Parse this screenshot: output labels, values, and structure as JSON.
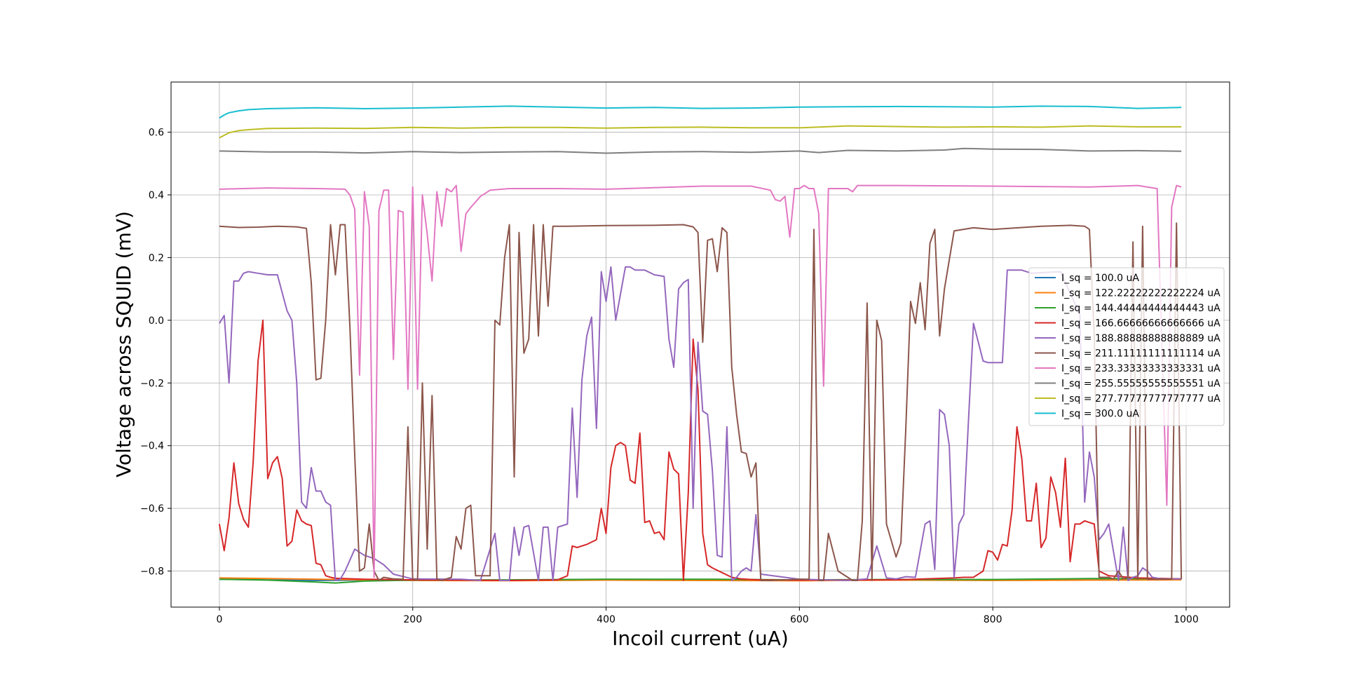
{
  "chart_data": {
    "type": "line",
    "xlabel": "Incoil current (uA)",
    "ylabel": "Voltage across SQUID (mV)",
    "xlim": [
      -50,
      1045
    ],
    "ylim": [
      -0.915,
      0.76
    ],
    "xticks": [
      0,
      200,
      400,
      600,
      800,
      1000
    ],
    "yticks": [
      -0.8,
      -0.6,
      -0.4,
      -0.2,
      0.0,
      0.2,
      0.4,
      0.6
    ],
    "xtick_labels": [
      "0",
      "200",
      "400",
      "600",
      "800",
      "1000"
    ],
    "ytick_labels": [
      "−0.8",
      "−0.6",
      "−0.4",
      "−0.2",
      "0.0",
      "0.2",
      "0.4",
      "0.6"
    ],
    "grid": true,
    "legend_position": "center-right",
    "series": [
      {
        "name": "I_sq = 100.0 uA",
        "color": "#1f77b4",
        "x": [
          0,
          100,
          200,
          300,
          400,
          500,
          600,
          700,
          800,
          900,
          995
        ],
        "y": [
          -0.826,
          -0.83,
          -0.828,
          -0.829,
          -0.827,
          -0.828,
          -0.829,
          -0.828,
          -0.829,
          -0.828,
          -0.827
        ]
      },
      {
        "name": "I_sq = 122.22222222222224 uA",
        "color": "#ff7f0e",
        "x": [
          0,
          100,
          200,
          300,
          400,
          500,
          600,
          700,
          800,
          900,
          995
        ],
        "y": [
          -0.822,
          -0.826,
          -0.83,
          -0.831,
          -0.829,
          -0.83,
          -0.831,
          -0.829,
          -0.83,
          -0.829,
          -0.828
        ]
      },
      {
        "name": "I_sq = 144.44444444444443 uA",
        "color": "#2ca02c",
        "x": [
          0,
          50,
          100,
          120,
          150,
          200,
          300,
          400,
          500,
          600,
          700,
          800,
          900,
          995
        ],
        "y": [
          -0.826,
          -0.829,
          -0.835,
          -0.838,
          -0.832,
          -0.829,
          -0.828,
          -0.826,
          -0.826,
          -0.828,
          -0.827,
          -0.827,
          -0.824,
          -0.825
        ]
      },
      {
        "name": "I_sq = 166.66666666666666 uA",
        "color": "#d62728",
        "x": [
          0,
          5,
          10,
          15,
          20,
          25,
          30,
          35,
          40,
          45,
          50,
          55,
          60,
          65,
          70,
          75,
          80,
          85,
          90,
          95,
          100,
          105,
          110,
          115,
          120,
          150,
          200,
          300,
          350,
          360,
          365,
          370,
          380,
          390,
          395,
          400,
          405,
          410,
          415,
          420,
          425,
          430,
          435,
          440,
          445,
          450,
          455,
          460,
          465,
          470,
          475,
          480,
          485,
          490,
          495,
          500,
          505,
          510,
          520,
          530,
          540,
          550,
          560,
          600,
          700,
          760,
          770,
          780,
          790,
          795,
          800,
          805,
          810,
          815,
          820,
          825,
          830,
          835,
          840,
          845,
          850,
          855,
          860,
          865,
          870,
          875,
          880,
          885,
          890,
          895,
          900,
          905,
          910,
          920,
          950,
          995
        ],
        "y": [
          -0.65,
          -0.735,
          -0.63,
          -0.455,
          -0.585,
          -0.635,
          -0.66,
          -0.45,
          -0.13,
          0.0,
          -0.505,
          -0.455,
          -0.435,
          -0.505,
          -0.72,
          -0.705,
          -0.605,
          -0.64,
          -0.65,
          -0.655,
          -0.775,
          -0.78,
          -0.815,
          -0.82,
          -0.823,
          -0.826,
          -0.828,
          -0.83,
          -0.828,
          -0.815,
          -0.72,
          -0.725,
          -0.715,
          -0.7,
          -0.6,
          -0.68,
          -0.47,
          -0.4,
          -0.39,
          -0.4,
          -0.51,
          -0.52,
          -0.36,
          -0.645,
          -0.64,
          -0.68,
          -0.675,
          -0.7,
          -0.42,
          -0.475,
          -0.49,
          -0.83,
          -0.55,
          -0.06,
          -0.22,
          -0.68,
          -0.78,
          -0.79,
          -0.805,
          -0.82,
          -0.825,
          -0.827,
          -0.828,
          -0.829,
          -0.828,
          -0.822,
          -0.82,
          -0.82,
          -0.8,
          -0.735,
          -0.74,
          -0.765,
          -0.715,
          -0.72,
          -0.605,
          -0.34,
          -0.44,
          -0.64,
          -0.64,
          -0.52,
          -0.725,
          -0.695,
          -0.5,
          -0.55,
          -0.66,
          -0.44,
          -0.77,
          -0.65,
          -0.65,
          -0.64,
          -0.645,
          -0.65,
          -0.8,
          -0.815,
          -0.822,
          -0.825
        ]
      },
      {
        "name": "I_sq = 188.88888888888889 uA",
        "color": "#9467bd",
        "x": [
          0,
          5,
          10,
          15,
          20,
          25,
          30,
          40,
          50,
          60,
          70,
          75,
          80,
          85,
          90,
          95,
          100,
          105,
          110,
          115,
          120,
          125,
          130,
          140,
          150,
          160,
          170,
          180,
          200,
          250,
          270,
          285,
          290,
          300,
          305,
          310,
          315,
          320,
          330,
          335,
          340,
          345,
          350,
          360,
          365,
          370,
          375,
          380,
          385,
          390,
          395,
          400,
          405,
          410,
          420,
          425,
          430,
          440,
          450,
          460,
          465,
          470,
          475,
          480,
          485,
          490,
          495,
          500,
          505,
          510,
          515,
          520,
          525,
          530,
          535,
          540,
          545,
          550,
          555,
          560,
          600,
          650,
          670,
          680,
          690,
          700,
          710,
          720,
          730,
          735,
          740,
          745,
          750,
          755,
          760,
          765,
          770,
          775,
          780,
          790,
          795,
          810,
          815,
          830,
          840,
          870,
          890,
          895,
          900,
          905,
          910,
          915,
          920,
          930,
          935,
          940,
          945,
          950,
          955,
          960,
          965,
          975,
          985,
          995
        ],
        "y": [
          -0.01,
          0.015,
          -0.2,
          0.125,
          0.125,
          0.15,
          0.155,
          0.15,
          0.145,
          0.145,
          0.03,
          0.0,
          -0.2,
          -0.58,
          -0.6,
          -0.47,
          -0.545,
          -0.545,
          -0.58,
          -0.59,
          -0.83,
          -0.826,
          -0.8,
          -0.73,
          -0.75,
          -0.76,
          -0.78,
          -0.81,
          -0.825,
          -0.826,
          -0.83,
          -0.68,
          -0.83,
          -0.83,
          -0.66,
          -0.75,
          -0.66,
          -0.655,
          -0.83,
          -0.66,
          -0.66,
          -0.83,
          -0.66,
          -0.65,
          -0.28,
          -0.565,
          -0.19,
          -0.05,
          0.01,
          -0.345,
          0.155,
          0.06,
          0.17,
          0.0,
          0.17,
          0.17,
          0.16,
          0.16,
          0.145,
          0.14,
          -0.06,
          -0.15,
          0.1,
          0.12,
          0.13,
          -0.6,
          -0.07,
          -0.29,
          -0.3,
          -0.48,
          -0.75,
          -0.755,
          -0.34,
          -0.83,
          -0.82,
          -0.8,
          -0.79,
          -0.8,
          -0.62,
          -0.81,
          -0.826,
          -0.83,
          -0.825,
          -0.72,
          -0.822,
          -0.825,
          -0.818,
          -0.82,
          -0.65,
          -0.64,
          -0.795,
          -0.285,
          -0.3,
          -0.4,
          -0.82,
          -0.65,
          -0.62,
          -0.31,
          -0.01,
          -0.13,
          -0.135,
          -0.135,
          0.16,
          0.16,
          0.15,
          0.155,
          0.02,
          -0.58,
          -0.42,
          -0.5,
          -0.7,
          -0.68,
          -0.65,
          -0.83,
          -0.66,
          -0.83,
          -0.82,
          -0.815,
          -0.79,
          -0.8,
          -0.82,
          -0.825,
          -0.825,
          -0.825
        ]
      },
      {
        "name": "I_sq = 211.11111111111114 uA",
        "color": "#8c564b",
        "x": [
          0,
          20,
          40,
          60,
          80,
          90,
          95,
          100,
          105,
          110,
          115,
          120,
          125,
          130,
          135,
          140,
          145,
          150,
          155,
          160,
          165,
          170,
          180,
          190,
          195,
          200,
          205,
          210,
          215,
          220,
          225,
          230,
          240,
          245,
          250,
          255,
          260,
          265,
          270,
          280,
          285,
          290,
          295,
          300,
          305,
          310,
          315,
          320,
          325,
          330,
          335,
          340,
          345,
          350,
          360,
          400,
          450,
          480,
          490,
          495,
          500,
          505,
          510,
          515,
          520,
          525,
          530,
          535,
          540,
          545,
          550,
          555,
          560,
          570,
          600,
          610,
          615,
          620,
          625,
          630,
          640,
          650,
          655,
          660,
          665,
          670,
          675,
          680,
          685,
          690,
          700,
          705,
          710,
          715,
          720,
          725,
          730,
          735,
          740,
          745,
          750,
          760,
          780,
          800,
          850,
          880,
          895,
          900,
          905,
          910,
          915,
          920,
          925,
          930,
          935,
          940,
          945,
          950,
          955,
          960,
          965,
          970,
          975,
          980,
          985,
          990,
          995
        ],
        "y": [
          0.3,
          0.296,
          0.297,
          0.3,
          0.298,
          0.293,
          0.12,
          -0.19,
          -0.185,
          0.0,
          0.305,
          0.145,
          0.305,
          0.305,
          -0.02,
          -0.43,
          -0.8,
          -0.79,
          -0.65,
          -0.8,
          -0.83,
          -0.82,
          -0.825,
          -0.826,
          -0.34,
          -0.825,
          -0.828,
          -0.2,
          -0.73,
          -0.24,
          -0.826,
          -0.83,
          -0.82,
          -0.69,
          -0.73,
          -0.6,
          -0.59,
          -0.815,
          -0.815,
          -0.815,
          0.0,
          -0.015,
          0.2,
          0.305,
          -0.5,
          0.28,
          -0.105,
          -0.06,
          0.305,
          -0.05,
          0.305,
          0.045,
          0.3,
          0.3,
          0.3,
          0.302,
          0.303,
          0.305,
          0.298,
          0.28,
          -0.07,
          0.255,
          0.26,
          0.155,
          0.295,
          0.28,
          -0.15,
          -0.3,
          -0.42,
          -0.425,
          -0.5,
          -0.455,
          -0.83,
          -0.83,
          -0.826,
          -0.826,
          0.29,
          -0.83,
          -0.83,
          -0.68,
          -0.8,
          -0.82,
          -0.83,
          -0.83,
          -0.64,
          0.055,
          -0.83,
          0.0,
          -0.065,
          -0.65,
          -0.755,
          -0.71,
          -0.35,
          0.06,
          -0.01,
          0.12,
          -0.03,
          0.245,
          0.29,
          -0.05,
          0.1,
          0.285,
          0.295,
          0.29,
          0.3,
          0.303,
          0.3,
          0.29,
          -0.05,
          -0.82,
          -0.82,
          -0.82,
          -0.825,
          -0.8,
          -0.825,
          -0.82,
          0.25,
          -0.826,
          0.3,
          -0.826,
          -0.826,
          -0.826,
          -0.826,
          -0.826,
          -0.826,
          0.31,
          -0.826
        ]
      },
      {
        "name": "I_sq = 233.33333333333331 uA",
        "color": "#e377c2",
        "x": [
          0,
          50,
          100,
          130,
          135,
          140,
          145,
          150,
          155,
          160,
          165,
          170,
          175,
          180,
          185,
          190,
          195,
          200,
          205,
          210,
          215,
          220,
          225,
          230,
          235,
          240,
          245,
          250,
          255,
          260,
          270,
          280,
          300,
          350,
          400,
          500,
          550,
          570,
          575,
          580,
          585,
          590,
          595,
          600,
          605,
          610,
          615,
          620,
          625,
          630,
          650,
          655,
          660,
          700,
          800,
          900,
          950,
          970,
          980,
          985,
          990,
          995
        ],
        "y": [
          0.418,
          0.422,
          0.42,
          0.418,
          0.4,
          0.355,
          -0.175,
          0.41,
          0.3,
          -0.82,
          0.35,
          0.415,
          0.415,
          -0.125,
          0.35,
          0.345,
          -0.22,
          0.425,
          -0.22,
          0.4,
          0.275,
          0.125,
          0.41,
          0.3,
          0.42,
          0.41,
          0.43,
          0.22,
          0.34,
          0.36,
          0.395,
          0.415,
          0.42,
          0.42,
          0.418,
          0.428,
          0.428,
          0.415,
          0.385,
          0.38,
          0.395,
          0.265,
          0.42,
          0.42,
          0.43,
          0.42,
          0.42,
          0.34,
          -0.21,
          0.42,
          0.42,
          0.41,
          0.43,
          0.43,
          0.428,
          0.425,
          0.43,
          0.42,
          -0.59,
          0.36,
          0.43,
          0.425
        ]
      },
      {
        "name": "I_sq = 255.55555555555551 uA",
        "color": "#7f7f7f",
        "x": [
          0,
          50,
          100,
          150,
          200,
          250,
          300,
          350,
          400,
          450,
          500,
          550,
          600,
          620,
          650,
          700,
          750,
          770,
          800,
          850,
          900,
          950,
          995
        ],
        "y": [
          0.54,
          0.537,
          0.537,
          0.534,
          0.538,
          0.535,
          0.537,
          0.538,
          0.533,
          0.537,
          0.538,
          0.536,
          0.54,
          0.535,
          0.542,
          0.54,
          0.543,
          0.548,
          0.546,
          0.545,
          0.54,
          0.541,
          0.539
        ]
      },
      {
        "name": "I_sq = 277.77777777777777 uA",
        "color": "#bcbd22",
        "x": [
          0,
          5,
          10,
          20,
          30,
          50,
          100,
          150,
          200,
          250,
          300,
          350,
          400,
          450,
          500,
          550,
          600,
          650,
          700,
          750,
          800,
          850,
          900,
          950,
          995
        ],
        "y": [
          0.582,
          0.59,
          0.598,
          0.605,
          0.608,
          0.612,
          0.613,
          0.612,
          0.615,
          0.613,
          0.615,
          0.615,
          0.613,
          0.615,
          0.616,
          0.614,
          0.614,
          0.62,
          0.618,
          0.616,
          0.617,
          0.616,
          0.62,
          0.617,
          0.617
        ]
      },
      {
        "name": "I_sq = 300.0 uA",
        "color": "#17becf",
        "x": [
          0,
          5,
          10,
          20,
          30,
          50,
          100,
          150,
          200,
          250,
          300,
          350,
          400,
          450,
          500,
          550,
          600,
          650,
          700,
          750,
          800,
          850,
          900,
          950,
          995
        ],
        "y": [
          0.645,
          0.655,
          0.662,
          0.668,
          0.672,
          0.675,
          0.678,
          0.675,
          0.677,
          0.68,
          0.683,
          0.68,
          0.677,
          0.679,
          0.676,
          0.677,
          0.68,
          0.681,
          0.682,
          0.681,
          0.68,
          0.683,
          0.682,
          0.676,
          0.679
        ]
      }
    ]
  }
}
